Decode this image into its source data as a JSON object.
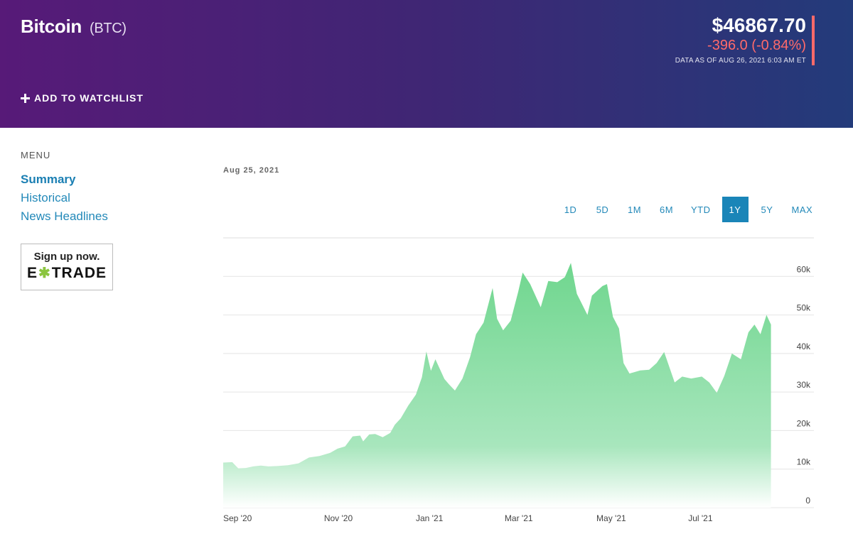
{
  "header": {
    "name": "Bitcoin",
    "ticker": "(BTC)",
    "watchlist_label": "ADD TO WATCHLIST",
    "price": "$46867.70",
    "change": "-396.0 (-0.84%)",
    "as_of": "DATA AS OF AUG 26, 2021 6:03 AM ET"
  },
  "menu": {
    "title": "MENU",
    "items": [
      "Summary",
      "Historical",
      "News Headlines"
    ]
  },
  "ad": {
    "cta": "Sign up now.",
    "brand_left": "E",
    "brand_star": "✱",
    "brand_right": "TRADE"
  },
  "chart_header": {
    "date": "Aug 25, 2021"
  },
  "ranges": [
    "1D",
    "5D",
    "1M",
    "6M",
    "YTD",
    "1Y",
    "5Y",
    "MAX"
  ],
  "active_range": "1Y",
  "colors": {
    "area_top": "#6fd68e",
    "area_bottom": "#ffffff",
    "accent": "#1a85b8",
    "negative": "#ff6a6a"
  },
  "chart_data": {
    "type": "area",
    "x_ticks": [
      "Sep '20",
      "Nov '20",
      "Jan '21",
      "Mar '21",
      "May '21",
      "Jul '21"
    ],
    "y_ticks": [
      "0",
      "10k",
      "20k",
      "30k",
      "40k",
      "50k",
      "60k"
    ],
    "ylim": [
      0,
      70000
    ],
    "grid": true,
    "series": [
      {
        "x": [
          "2020-08-26",
          "2020-09-01",
          "2020-09-05",
          "2020-09-10",
          "2020-09-15",
          "2020-09-20",
          "2020-09-25",
          "2020-10-01",
          "2020-10-08",
          "2020-10-15",
          "2020-10-22",
          "2020-10-29",
          "2020-11-05",
          "2020-11-10",
          "2020-11-15",
          "2020-11-20",
          "2020-11-25",
          "2020-11-27",
          "2020-12-01",
          "2020-12-05",
          "2020-12-10",
          "2020-12-15",
          "2020-12-18",
          "2020-12-22",
          "2020-12-27",
          "2021-01-01",
          "2021-01-05",
          "2021-01-08",
          "2021-01-11",
          "2021-01-14",
          "2021-01-20",
          "2021-01-23",
          "2021-01-27",
          "2021-02-01",
          "2021-02-06",
          "2021-02-10",
          "2021-02-15",
          "2021-02-21",
          "2021-02-24",
          "2021-02-28",
          "2021-03-05",
          "2021-03-10",
          "2021-03-13",
          "2021-03-18",
          "2021-03-25",
          "2021-03-30",
          "2021-04-05",
          "2021-04-10",
          "2021-04-14",
          "2021-04-18",
          "2021-04-25",
          "2021-04-28",
          "2021-05-05",
          "2021-05-08",
          "2021-05-12",
          "2021-05-16",
          "2021-05-19",
          "2021-05-23",
          "2021-05-30",
          "2021-06-05",
          "2021-06-10",
          "2021-06-15",
          "2021-06-22",
          "2021-06-27",
          "2021-07-03",
          "2021-07-10",
          "2021-07-15",
          "2021-07-20",
          "2021-07-25",
          "2021-07-30",
          "2021-08-05",
          "2021-08-10",
          "2021-08-14",
          "2021-08-18",
          "2021-08-22",
          "2021-08-25"
        ],
        "y": [
          11700,
          11800,
          10200,
          10300,
          10700,
          10900,
          10700,
          10800,
          11000,
          11500,
          13000,
          13400,
          14200,
          15300,
          15900,
          18500,
          18700,
          17200,
          19000,
          19100,
          18300,
          19400,
          21500,
          23200,
          26500,
          29300,
          33800,
          40500,
          35500,
          38500,
          33400,
          32000,
          30400,
          33500,
          39000,
          45000,
          48000,
          57000,
          49000,
          46000,
          48500,
          56000,
          61000,
          58000,
          52000,
          58800,
          58500,
          59800,
          63500,
          55500,
          50000,
          55000,
          57500,
          58000,
          49500,
          46500,
          37500,
          34800,
          35600,
          35800,
          37500,
          40400,
          32500,
          34000,
          33500,
          34000,
          32500,
          29800,
          34200,
          40000,
          38500,
          45500,
          47500,
          45000,
          50000,
          47500
        ]
      }
    ]
  }
}
